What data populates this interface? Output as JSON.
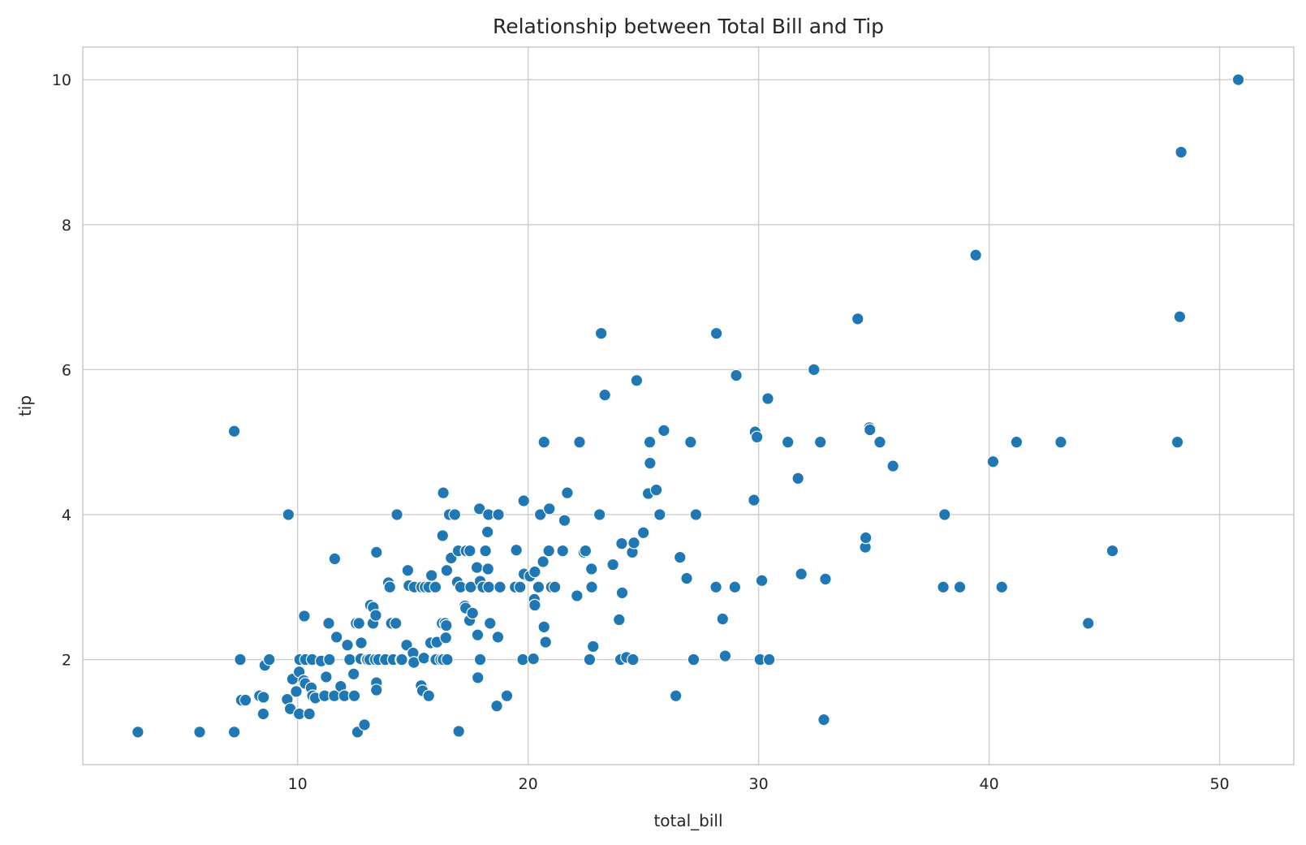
{
  "chart_data": {
    "type": "scatter",
    "title": "Relationship between Total Bill and Tip",
    "xlabel": "total_bill",
    "ylabel": "tip",
    "xlim": [
      0.68,
      53.22
    ],
    "ylim": [
      0.55,
      10.45
    ],
    "xticks": [
      10,
      20,
      30,
      40,
      50
    ],
    "yticks": [
      2,
      4,
      6,
      8,
      10
    ],
    "grid": true,
    "point_color": "#1f77b4",
    "series": [
      {
        "points": [
          [
            3.07,
            1.0
          ],
          [
            5.75,
            1.0
          ],
          [
            7.25,
            1.0
          ],
          [
            7.25,
            5.15
          ],
          [
            7.51,
            2.0
          ],
          [
            7.56,
            1.44
          ],
          [
            7.74,
            1.44
          ],
          [
            8.35,
            1.5
          ],
          [
            8.52,
            1.48
          ],
          [
            8.51,
            1.25
          ],
          [
            8.58,
            1.92
          ],
          [
            8.77,
            2.0
          ],
          [
            9.55,
            1.45
          ],
          [
            9.6,
            4.0
          ],
          [
            9.68,
            1.32
          ],
          [
            9.78,
            1.73
          ],
          [
            9.94,
            1.56
          ],
          [
            10.07,
            1.25
          ],
          [
            10.07,
            1.83
          ],
          [
            10.09,
            2.0
          ],
          [
            10.27,
            1.71
          ],
          [
            10.29,
            2.6
          ],
          [
            10.33,
            1.67
          ],
          [
            10.34,
            2.0
          ],
          [
            10.51,
            1.25
          ],
          [
            10.59,
            1.61
          ],
          [
            10.63,
            2.0
          ],
          [
            10.65,
            1.5
          ],
          [
            10.77,
            1.47
          ],
          [
            11.02,
            1.98
          ],
          [
            11.17,
            1.5
          ],
          [
            11.24,
            1.76
          ],
          [
            11.35,
            2.5
          ],
          [
            11.38,
            2.0
          ],
          [
            11.59,
            1.5
          ],
          [
            11.61,
            3.39
          ],
          [
            11.69,
            2.31
          ],
          [
            11.87,
            1.63
          ],
          [
            12.03,
            1.5
          ],
          [
            12.16,
            2.2
          ],
          [
            12.26,
            2.0
          ],
          [
            12.43,
            1.8
          ],
          [
            12.46,
            1.5
          ],
          [
            12.54,
            2.5
          ],
          [
            12.6,
            1.0
          ],
          [
            12.66,
            2.5
          ],
          [
            12.74,
            2.01
          ],
          [
            12.76,
            2.23
          ],
          [
            12.9,
            1.1
          ],
          [
            13.0,
            2.0
          ],
          [
            13.03,
            2.0
          ],
          [
            13.13,
            2.0
          ],
          [
            13.16,
            2.75
          ],
          [
            13.27,
            2.5
          ],
          [
            13.28,
            2.72
          ],
          [
            13.37,
            2.0
          ],
          [
            13.39,
            2.61
          ],
          [
            13.42,
            3.48
          ],
          [
            13.42,
            1.68
          ],
          [
            13.42,
            1.58
          ],
          [
            13.51,
            2.0
          ],
          [
            13.81,
            2.0
          ],
          [
            13.94,
            3.06
          ],
          [
            14.0,
            3.0
          ],
          [
            14.07,
            2.5
          ],
          [
            14.15,
            2.0
          ],
          [
            14.26,
            2.5
          ],
          [
            14.31,
            4.0
          ],
          [
            14.48,
            2.0
          ],
          [
            14.52,
            2.0
          ],
          [
            14.73,
            2.2
          ],
          [
            14.78,
            3.23
          ],
          [
            14.83,
            3.02
          ],
          [
            15.01,
            2.09
          ],
          [
            15.04,
            1.96
          ],
          [
            15.06,
            3.0
          ],
          [
            15.36,
            1.64
          ],
          [
            15.38,
            3.0
          ],
          [
            15.42,
            1.57
          ],
          [
            15.48,
            2.02
          ],
          [
            15.53,
            3.0
          ],
          [
            15.69,
            1.5
          ],
          [
            15.69,
            3.0
          ],
          [
            15.77,
            2.23
          ],
          [
            15.81,
            3.16
          ],
          [
            15.95,
            2.0
          ],
          [
            15.98,
            3.0
          ],
          [
            16.0,
            2.0
          ],
          [
            16.04,
            2.24
          ],
          [
            16.21,
            2.0
          ],
          [
            16.27,
            2.5
          ],
          [
            16.29,
            3.71
          ],
          [
            16.31,
            2.0
          ],
          [
            16.32,
            4.3
          ],
          [
            16.4,
            2.5
          ],
          [
            16.43,
            2.3
          ],
          [
            16.45,
            2.47
          ],
          [
            16.47,
            3.23
          ],
          [
            16.49,
            2.0
          ],
          [
            16.58,
            4.0
          ],
          [
            16.66,
            3.4
          ],
          [
            16.82,
            4.0
          ],
          [
            16.93,
            3.07
          ],
          [
            16.97,
            3.5
          ],
          [
            16.99,
            1.01
          ],
          [
            17.07,
            3.0
          ],
          [
            17.26,
            2.74
          ],
          [
            17.29,
            2.71
          ],
          [
            17.31,
            3.5
          ],
          [
            17.46,
            2.54
          ],
          [
            17.47,
            3.5
          ],
          [
            17.51,
            3.0
          ],
          [
            17.59,
            2.64
          ],
          [
            17.78,
            3.27
          ],
          [
            17.81,
            2.34
          ],
          [
            17.82,
            1.75
          ],
          [
            17.89,
            4.08
          ],
          [
            17.92,
            3.08
          ],
          [
            17.92,
            2.0
          ],
          [
            18.04,
            3.0
          ],
          [
            18.15,
            3.5
          ],
          [
            18.24,
            3.76
          ],
          [
            18.26,
            3.25
          ],
          [
            18.28,
            4.0
          ],
          [
            18.29,
            3.0
          ],
          [
            18.35,
            2.5
          ],
          [
            18.64,
            1.36
          ],
          [
            18.69,
            2.31
          ],
          [
            18.71,
            4.0
          ],
          [
            18.78,
            3.0
          ],
          [
            19.08,
            1.5
          ],
          [
            19.44,
            3.0
          ],
          [
            19.49,
            3.51
          ],
          [
            19.65,
            3.0
          ],
          [
            19.77,
            2.0
          ],
          [
            19.81,
            4.19
          ],
          [
            19.82,
            3.18
          ],
          [
            20.08,
            3.15
          ],
          [
            20.23,
            2.01
          ],
          [
            20.27,
            2.83
          ],
          [
            20.29,
            2.75
          ],
          [
            20.29,
            3.21
          ],
          [
            20.45,
            3.0
          ],
          [
            20.53,
            4.0
          ],
          [
            20.65,
            3.35
          ],
          [
            20.69,
            2.45
          ],
          [
            20.69,
            5.0
          ],
          [
            20.76,
            2.24
          ],
          [
            20.9,
            3.5
          ],
          [
            20.92,
            4.08
          ],
          [
            21.01,
            3.0
          ],
          [
            21.16,
            3.0
          ],
          [
            21.5,
            3.5
          ],
          [
            21.58,
            3.92
          ],
          [
            21.7,
            4.3
          ],
          [
            22.12,
            2.88
          ],
          [
            22.23,
            5.0
          ],
          [
            22.42,
            3.48
          ],
          [
            22.49,
            3.5
          ],
          [
            22.67,
            2.0
          ],
          [
            22.75,
            3.25
          ],
          [
            22.76,
            3.0
          ],
          [
            22.82,
            2.18
          ],
          [
            23.1,
            4.0
          ],
          [
            23.17,
            6.5
          ],
          [
            23.33,
            5.65
          ],
          [
            23.68,
            3.31
          ],
          [
            23.95,
            2.55
          ],
          [
            24.01,
            2.0
          ],
          [
            24.06,
            3.6
          ],
          [
            24.08,
            2.92
          ],
          [
            24.27,
            2.03
          ],
          [
            24.52,
            3.48
          ],
          [
            24.55,
            2.0
          ],
          [
            24.59,
            3.61
          ],
          [
            24.71,
            5.85
          ],
          [
            25.0,
            3.75
          ],
          [
            25.21,
            4.29
          ],
          [
            25.28,
            5.0
          ],
          [
            25.29,
            4.71
          ],
          [
            25.56,
            4.34
          ],
          [
            25.71,
            4.0
          ],
          [
            25.89,
            5.16
          ],
          [
            26.41,
            1.5
          ],
          [
            26.59,
            3.41
          ],
          [
            26.88,
            3.12
          ],
          [
            27.05,
            5.0
          ],
          [
            27.18,
            2.0
          ],
          [
            27.28,
            4.0
          ],
          [
            28.15,
            3.0
          ],
          [
            28.17,
            6.5
          ],
          [
            28.44,
            2.56
          ],
          [
            28.55,
            2.05
          ],
          [
            28.97,
            3.0
          ],
          [
            29.03,
            5.92
          ],
          [
            29.8,
            4.2
          ],
          [
            29.85,
            5.14
          ],
          [
            29.93,
            5.07
          ],
          [
            30.06,
            2.0
          ],
          [
            30.14,
            3.09
          ],
          [
            30.4,
            5.6
          ],
          [
            30.46,
            2.0
          ],
          [
            31.27,
            5.0
          ],
          [
            31.71,
            4.5
          ],
          [
            31.85,
            3.18
          ],
          [
            32.4,
            6.0
          ],
          [
            32.68,
            5.0
          ],
          [
            32.83,
            1.17
          ],
          [
            32.9,
            3.11
          ],
          [
            34.3,
            6.7
          ],
          [
            34.63,
            3.55
          ],
          [
            34.65,
            3.68
          ],
          [
            34.81,
            5.2
          ],
          [
            34.83,
            5.17
          ],
          [
            35.26,
            5.0
          ],
          [
            35.83,
            4.67
          ],
          [
            38.07,
            4.0
          ],
          [
            38.01,
            3.0
          ],
          [
            38.73,
            3.0
          ],
          [
            39.42,
            7.58
          ],
          [
            40.17,
            4.73
          ],
          [
            40.55,
            3.0
          ],
          [
            41.19,
            5.0
          ],
          [
            43.11,
            5.0
          ],
          [
            44.3,
            2.5
          ],
          [
            45.35,
            3.5
          ],
          [
            48.17,
            5.0
          ],
          [
            48.27,
            6.73
          ],
          [
            48.33,
            9.0
          ],
          [
            50.81,
            10.0
          ]
        ]
      }
    ]
  }
}
